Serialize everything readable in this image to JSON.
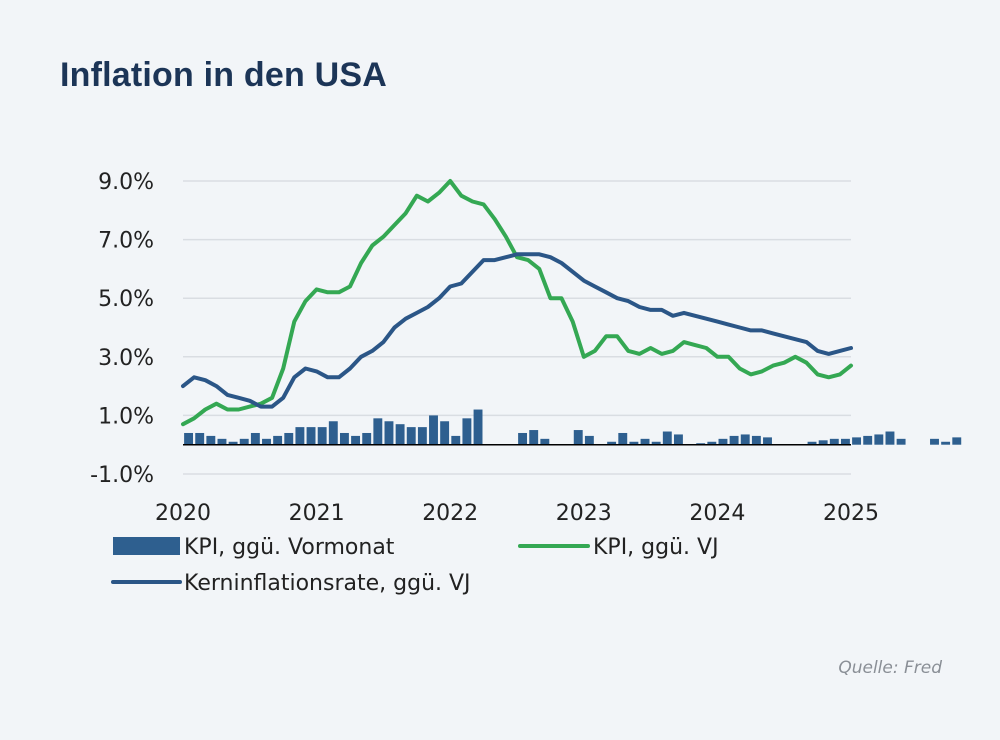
{
  "title": "Inflation in den USA",
  "source": "Quelle: Fred",
  "colors": {
    "bars": "#2e5f8f",
    "headline": "#34a853",
    "core": "#2b5687",
    "grid": "#d9dde2",
    "axis": "#000000"
  },
  "chart_data": {
    "type": "bar+line",
    "ylim": [
      -1.0,
      9.0
    ],
    "y_ticks": [
      -1.0,
      1.0,
      3.0,
      5.0,
      7.0,
      9.0
    ],
    "y_tick_labels": [
      "-1.0%",
      "1.0%",
      "3.0%",
      "5.0%",
      "7.0%",
      "9.0%"
    ],
    "x_tick_labels": [
      "2020",
      "2021",
      "2022",
      "2023",
      "2024",
      "2025"
    ],
    "x_start_year": 2020,
    "legend": [
      {
        "name": "KPI, ggü. Vormonat",
        "kind": "bar"
      },
      {
        "name": "KPI, ggü. VJ",
        "kind": "line"
      },
      {
        "name": "Kerninflationsrate, ggü. VJ",
        "kind": "line"
      }
    ],
    "series": [
      {
        "name": "KPI, ggü. Vormonat",
        "kind": "bar",
        "values": [
          0.4,
          0.4,
          0.3,
          0.2,
          0.1,
          0.2,
          0.4,
          0.2,
          0.3,
          0.4,
          0.6,
          0.6,
          0.6,
          0.8,
          0.4,
          0.3,
          0.4,
          0.9,
          0.8,
          0.7,
          0.6,
          0.6,
          1.0,
          0.8,
          0.3,
          0.9,
          1.2,
          0.0,
          0.0,
          0.0,
          0.4,
          0.5,
          0.2,
          0.0,
          0.0,
          0.5,
          0.3,
          0.0,
          0.1,
          0.4,
          0.1,
          0.2,
          0.1,
          0.45,
          0.35,
          0.0,
          0.05,
          0.1,
          0.2,
          0.3,
          0.35,
          0.3,
          0.25,
          0.0,
          0.0,
          0.0,
          0.1,
          0.15,
          0.2,
          0.2,
          0.25,
          0.3,
          0.35,
          0.45,
          0.2,
          0.0,
          0.0,
          0.2,
          0.1,
          0.25
        ]
      },
      {
        "name": "KPI, ggü. VJ",
        "kind": "line",
        "values": [
          0.7,
          0.9,
          1.2,
          1.4,
          1.2,
          1.2,
          1.3,
          1.4,
          1.6,
          2.6,
          4.2,
          4.9,
          5.3,
          5.2,
          5.2,
          5.4,
          6.2,
          6.8,
          7.1,
          7.5,
          7.9,
          8.5,
          8.3,
          8.6,
          9.0,
          8.5,
          8.3,
          8.2,
          7.7,
          7.1,
          6.4,
          6.3,
          6.0,
          5.0,
          5.0,
          4.2,
          3.0,
          3.2,
          3.7,
          3.7,
          3.2,
          3.1,
          3.3,
          3.1,
          3.2,
          3.5,
          3.4,
          3.3,
          3.0,
          3.0,
          2.6,
          2.4,
          2.5,
          2.7,
          2.8,
          3.0,
          2.8,
          2.4,
          2.3,
          2.4,
          2.7
        ]
      },
      {
        "name": "Kerninflationsrate, ggü. VJ",
        "kind": "line",
        "values": [
          2.0,
          2.3,
          2.2,
          2.0,
          1.7,
          1.6,
          1.5,
          1.3,
          1.3,
          1.6,
          2.3,
          2.6,
          2.5,
          2.3,
          2.3,
          2.6,
          3.0,
          3.2,
          3.5,
          4.0,
          4.3,
          4.5,
          4.7,
          5.0,
          5.4,
          5.5,
          5.9,
          6.3,
          6.3,
          6.4,
          6.5,
          6.5,
          6.5,
          6.4,
          6.2,
          5.9,
          5.6,
          5.4,
          5.2,
          5.0,
          4.9,
          4.7,
          4.6,
          4.6,
          4.4,
          4.5,
          4.4,
          4.3,
          4.2,
          4.1,
          4.0,
          3.9,
          3.9,
          3.8,
          3.7,
          3.6,
          3.5,
          3.2,
          3.1,
          3.2,
          3.3
        ]
      }
    ]
  }
}
